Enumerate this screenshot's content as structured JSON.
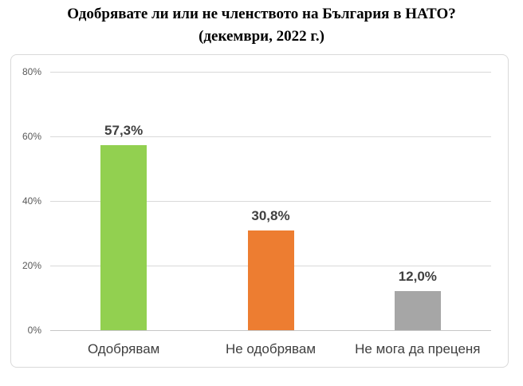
{
  "title": {
    "line1": "Одобрявате ли или не членството на България в НАТО?",
    "line2": "(декември, 2022 г.)"
  },
  "chart_data": {
    "type": "bar",
    "title": "Одобрявате ли или не членството на България в НАТО? (декември, 2022 г.)",
    "categories": [
      "Одобрявам",
      "Не одобрявам",
      "Не мога да преценя"
    ],
    "values": [
      57.3,
      30.8,
      12.0
    ],
    "value_labels": [
      "57,3%",
      "30,8%",
      "12,0%"
    ],
    "bar_colors": [
      "#92D050",
      "#ED7D31",
      "#A6A6A6"
    ],
    "xlabel": "",
    "ylabel": "",
    "ylim": [
      0,
      80
    ],
    "ytick_values": [
      0,
      20,
      40,
      60,
      80
    ],
    "ytick_labels": [
      "0%",
      "20%",
      "40%",
      "60%",
      "80%"
    ],
    "grid": true,
    "legend": false,
    "colors": {
      "gridline": "#D9D9D9",
      "axis_line": "#C6C6C6",
      "ytick_text": "#595959",
      "value_label_text": "#404040",
      "category_text": "#3F3F3F",
      "chart_border": "#D9D9D9",
      "background": "#FFFFFF"
    }
  }
}
